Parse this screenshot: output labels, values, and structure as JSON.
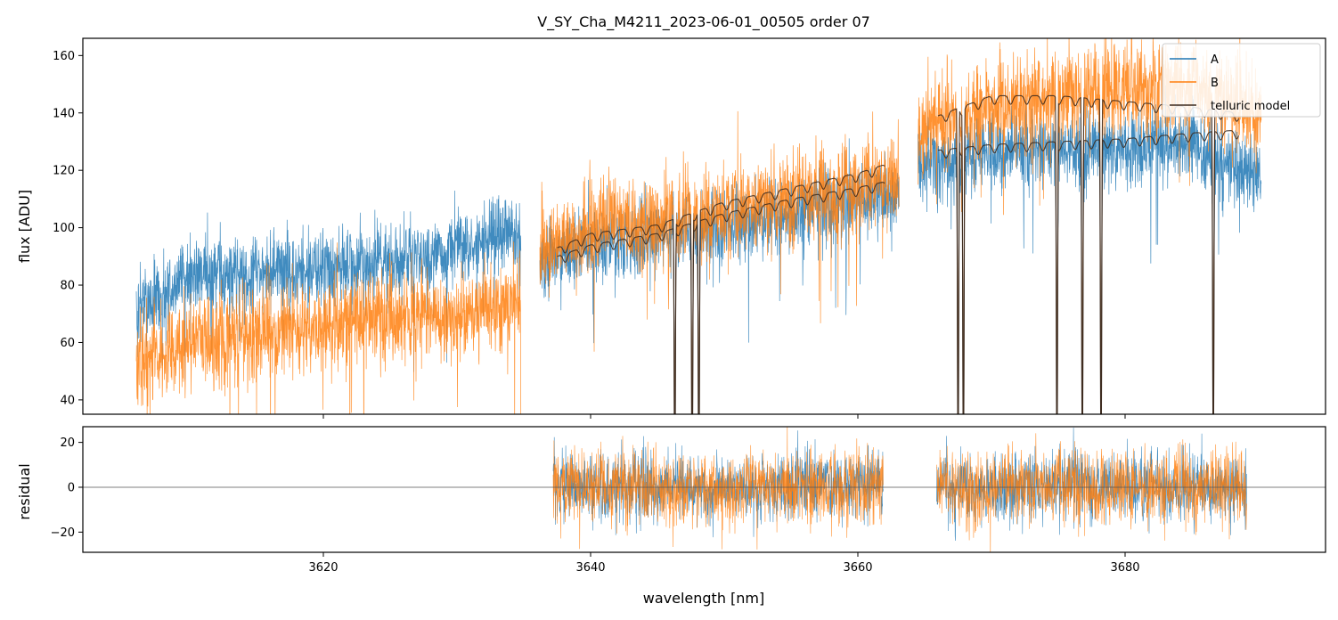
{
  "chart_data": [
    {
      "type": "line",
      "title": "V_SY_Cha_M4211_2023-06-01_00505  order 07",
      "xlabel": "",
      "ylabel": "flux [ADU]",
      "xlim": [
        3602,
        3695
      ],
      "ylim": [
        35,
        166
      ],
      "yticks": [
        40,
        60,
        80,
        100,
        120,
        140,
        160
      ],
      "xticks": [
        3620,
        3640,
        3660,
        3680
      ],
      "show_xtick_labels": false,
      "legend": {
        "position": "top-right",
        "entries": [
          "A",
          "B",
          "telluric model"
        ]
      },
      "segments": [
        [
          3606.0,
          3634.8
        ],
        [
          3636.2,
          3663.1
        ],
        [
          3664.5,
          3690.2
        ]
      ],
      "series": [
        {
          "name": "A",
          "color": "#1f77b4",
          "continuum_x": [
            3606,
            3610,
            3615,
            3620,
            3625,
            3630,
            3634.8,
            3636.2,
            3640,
            3645,
            3650,
            3655,
            3660,
            3663,
            3664.5,
            3670,
            3675,
            3680,
            3685,
            3690
          ],
          "continuum_y": [
            72,
            82,
            84,
            86,
            88,
            92,
            99,
            87,
            94,
            97,
            101,
            105,
            110,
            112,
            121,
            126,
            127,
            128,
            130,
            118
          ]
        },
        {
          "name": "B",
          "color": "#ff7f0e",
          "continuum_x": [
            3606,
            3610,
            3615,
            3620,
            3625,
            3630,
            3634.8,
            3636.2,
            3640,
            3645,
            3650,
            3655,
            3660,
            3663,
            3664.5,
            3670,
            3675,
            3680,
            3685,
            3690
          ],
          "continuum_y": [
            52,
            60,
            63,
            66,
            68,
            70,
            75,
            92,
            100,
            103,
            106,
            110,
            114,
            116,
            135,
            142,
            146,
            148,
            150,
            140
          ]
        },
        {
          "name": "telluric model",
          "color": "#3d2b1f",
          "tracks": [
            {
              "x": [
                3637.5,
                3640,
                3645,
                3650,
                3655,
                3660,
                3662
              ],
              "y": [
                93,
                98,
                101,
                109,
                114,
                119,
                122
              ]
            },
            {
              "x": [
                3637.5,
                3640,
                3645,
                3650,
                3655,
                3660,
                3662
              ],
              "y": [
                90,
                94,
                98,
                105,
                110,
                114,
                116
              ]
            },
            {
              "x": [
                3666,
                3670,
                3675,
                3680,
                3685,
                3688.5
              ],
              "y": [
                139,
                146,
                146,
                144,
                142,
                140
              ]
            },
            {
              "x": [
                3666,
                3670,
                3675,
                3680,
                3685,
                3688.5
              ],
              "y": [
                127,
                129,
                130,
                131,
                133,
                134
              ]
            }
          ],
          "deep_lines": [
            3646.3,
            3647.6,
            3648.1,
            3667.5,
            3667.9,
            3674.9,
            3676.8,
            3678.2,
            3686.6
          ]
        }
      ]
    },
    {
      "type": "line",
      "title": "",
      "xlabel": "wavelength [nm]",
      "ylabel": "residual",
      "xlim": [
        3602,
        3695
      ],
      "ylim": [
        -29,
        27
      ],
      "yticks": [
        -20,
        0,
        20
      ],
      "ytick_labels": [
        "−20",
        "0",
        "20"
      ],
      "xticks": [
        3620,
        3640,
        3660,
        3680
      ],
      "segments": [
        [
          3637.2,
          3661.9
        ],
        [
          3665.9,
          3689.1
        ]
      ],
      "series": [
        {
          "name": "A",
          "color": "#1f77b4",
          "noise_sigma": 7.5
        },
        {
          "name": "B",
          "color": "#ff7f0e",
          "noise_sigma": 8.5
        }
      ],
      "reference_line": 0
    }
  ]
}
